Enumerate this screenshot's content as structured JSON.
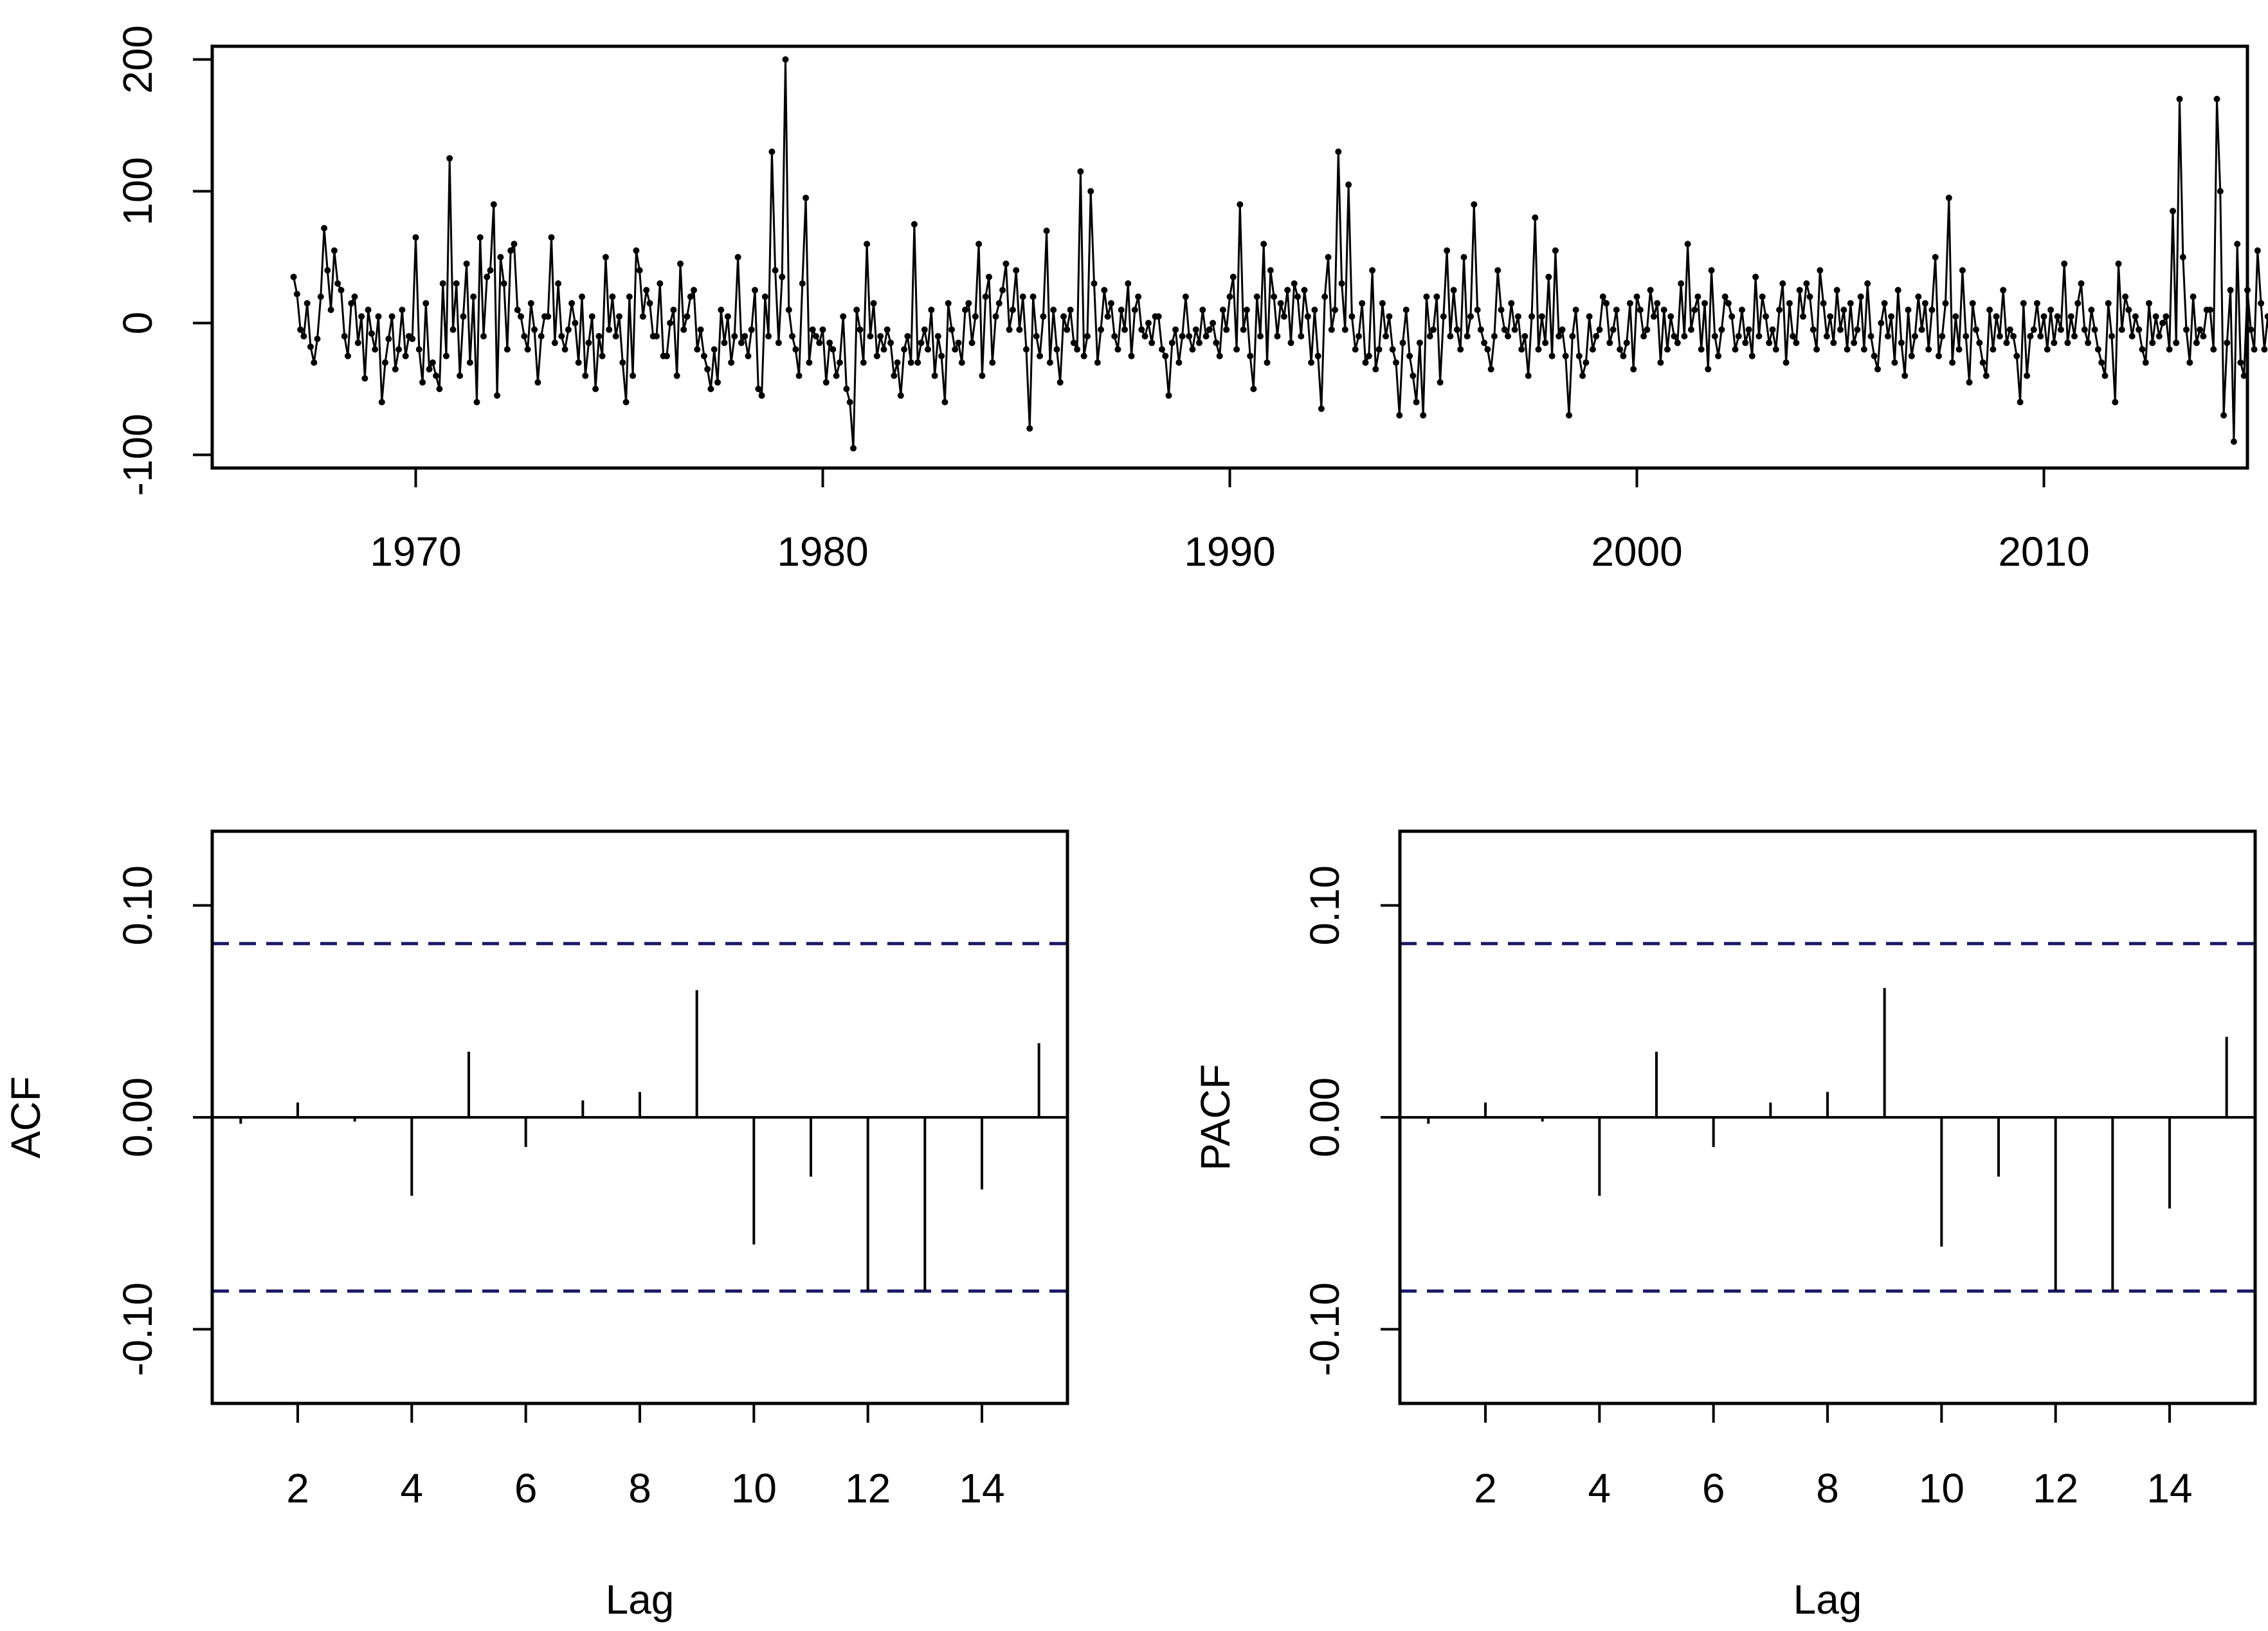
{
  "chart_data": [
    {
      "type": "line",
      "title": "",
      "xlabel": "",
      "ylabel": "",
      "x_start": 1967,
      "x_frequency": "monthly",
      "xlim": [
        1965,
        2015
      ],
      "ylim": [
        -110,
        210
      ],
      "x_ticks": [
        1970,
        1980,
        1990,
        2000,
        2010
      ],
      "x_tick_labels": [
        "1970",
        "1980",
        "1990",
        "2000",
        "2010"
      ],
      "y_ticks": [
        -100,
        0,
        100,
        200
      ],
      "y_tick_labels": [
        "-100",
        "0",
        "100",
        "200"
      ],
      "grid": false,
      "marker": "point",
      "series": [
        {
          "values": [
            35,
            22,
            -5,
            -10,
            15,
            -18,
            -30,
            -12,
            20,
            72,
            40,
            10,
            55,
            30,
            25,
            -10,
            -25,
            15,
            20,
            -15,
            5,
            -42,
            10,
            -8,
            -20,
            5,
            -60,
            -30,
            -12,
            5,
            -35,
            -20,
            10,
            -25,
            -10,
            -12,
            65,
            -20,
            -45,
            15,
            -35,
            -30,
            -40,
            -50,
            30,
            -25,
            125,
            -5,
            30,
            -40,
            5,
            45,
            -30,
            20,
            -60,
            65,
            -10,
            35,
            40,
            90,
            -55,
            50,
            30,
            -20,
            55,
            60,
            10,
            5,
            -10,
            -20,
            15,
            -5,
            -45,
            -10,
            5,
            5,
            65,
            -15,
            30,
            -10,
            -20,
            -5,
            15,
            0,
            -30,
            20,
            -40,
            -15,
            5,
            -50,
            -10,
            -25,
            50,
            -5,
            20,
            -10,
            5,
            -30,
            -60,
            20,
            -40,
            55,
            40,
            5,
            25,
            15,
            -10,
            -10,
            30,
            -25,
            -25,
            0,
            10,
            -40,
            45,
            -5,
            5,
            20,
            25,
            -20,
            -5,
            -25,
            -35,
            -50,
            -20,
            -45,
            10,
            -15,
            5,
            -30,
            -10,
            50,
            -15,
            -10,
            -25,
            -5,
            25,
            -50,
            -55,
            20,
            -10,
            130,
            40,
            -15,
            35,
            200,
            10,
            -10,
            -20,
            -40,
            30,
            95,
            -30,
            -5,
            -10,
            -15,
            -5,
            -45,
            -15,
            -20,
            -40,
            -30,
            5,
            -50,
            -60,
            -95,
            10,
            -5,
            -30,
            60,
            -10,
            15,
            -25,
            -10,
            -20,
            -5,
            -15,
            -40,
            -30,
            -55,
            -20,
            -10,
            -30,
            75,
            -30,
            -15,
            -5,
            -20,
            10,
            -40,
            -10,
            -25,
            -60,
            15,
            -5,
            -20,
            -15,
            -30,
            10,
            15,
            -15,
            5,
            60,
            -40,
            20,
            35,
            -30,
            5,
            15,
            25,
            45,
            -5,
            10,
            40,
            -5,
            20,
            -20,
            -80,
            20,
            -10,
            -25,
            5,
            70,
            -30,
            10,
            -20,
            -45,
            5,
            -5,
            10,
            -15,
            -20,
            115,
            -25,
            -10,
            100,
            30,
            -30,
            -5,
            25,
            5,
            15,
            -10,
            -20,
            10,
            -5,
            30,
            -25,
            10,
            20,
            -5,
            -10,
            0,
            -15,
            5,
            5,
            -20,
            -25,
            -55,
            -15,
            -5,
            -30,
            -10,
            20,
            -10,
            -20,
            -5,
            -15,
            10,
            -10,
            -5,
            0,
            -15,
            -25,
            10,
            -5,
            20,
            35,
            -20,
            90,
            -5,
            10,
            -25,
            -50,
            20,
            -10,
            60,
            -30,
            40,
            20,
            -10,
            15,
            5,
            25,
            -15,
            30,
            20,
            -10,
            25,
            5,
            -30,
            10,
            -25,
            -65,
            20,
            50,
            -5,
            10,
            130,
            30,
            -5,
            105,
            5,
            -20,
            -10,
            15,
            -30,
            -25,
            40,
            -35,
            -20,
            15,
            -10,
            5,
            -20,
            -30,
            -70,
            -15,
            10,
            -25,
            -40,
            -60,
            -15,
            -70,
            20,
            -10,
            -5,
            20,
            -45,
            5,
            55,
            -10,
            25,
            -5,
            -20,
            50,
            -10,
            5,
            90,
            10,
            -5,
            -15,
            -20,
            -35,
            -10,
            40,
            10,
            -5,
            -10,
            15,
            -5,
            5,
            -20,
            -10,
            -40,
            5,
            80,
            -20,
            5,
            -15,
            35,
            -25,
            55,
            -10,
            -5,
            -25,
            -70,
            -10,
            10,
            -25,
            -40,
            -30,
            5,
            -20,
            -10,
            -5,
            20,
            15,
            -15,
            -5,
            10,
            -20,
            -25,
            -15,
            15,
            -35,
            20,
            10,
            -10,
            -5,
            25,
            5,
            15,
            -30,
            10,
            -20,
            5,
            -10,
            -15,
            30,
            -10,
            60,
            -5,
            10,
            20,
            -20,
            15,
            -35,
            40,
            -10,
            -25,
            -5,
            20,
            15,
            5,
            -20,
            -10,
            10,
            -15,
            -5,
            -25,
            35,
            -10,
            20,
            5,
            -15,
            -5,
            -20,
            10,
            30,
            -30,
            15,
            -10,
            -15,
            25,
            5,
            30,
            20,
            -5,
            -20,
            40,
            15,
            -10,
            5,
            -15,
            25,
            -5,
            10,
            -20,
            15,
            -15,
            -5,
            20,
            -20,
            30,
            -10,
            -25,
            -35,
            0,
            15,
            -10,
            5,
            -30,
            25,
            -15,
            -40,
            10,
            -25,
            -10,
            20,
            -5,
            15,
            -20,
            10,
            50,
            -25,
            -10,
            15,
            95,
            -30,
            5,
            -20,
            40,
            -10,
            -45,
            15,
            -5,
            -15,
            -30,
            -40,
            10,
            -20,
            5,
            -10,
            25,
            -15,
            -5,
            -10,
            -25,
            -60,
            15,
            -40,
            -10,
            -5,
            15,
            -10,
            5,
            -20,
            10,
            -15,
            5,
            -5,
            45,
            -15,
            5,
            -10,
            15,
            30,
            -5,
            -15,
            10,
            -5,
            -20,
            -30,
            -40,
            15,
            -10,
            -60,
            45,
            -5,
            20,
            10,
            -10,
            5,
            -5,
            -20,
            -30,
            15,
            -15,
            5,
            -10,
            0,
            5,
            -20,
            85,
            -15,
            170,
            50,
            -5,
            -30,
            20,
            -15,
            -5,
            -10,
            10,
            10,
            -20,
            170,
            100,
            -70,
            -15,
            25,
            -90,
            60,
            -30,
            -40,
            25,
            -5,
            -20,
            55,
            15,
            -20,
            5,
            -25,
            -60,
            -95,
            -40,
            -5,
            30,
            -20,
            -10,
            20,
            25,
            -5,
            -30,
            -20,
            -10,
            20,
            -15,
            10,
            -10,
            -5,
            40,
            15,
            -20,
            -15,
            -75,
            30,
            60,
            -35,
            -5,
            15,
            -20,
            5,
            -40,
            -70,
            10,
            -20,
            -5,
            -25,
            40,
            5,
            -10,
            20,
            -15,
            35,
            -10,
            -25,
            5,
            30,
            -5,
            10,
            40,
            -20,
            -30,
            15,
            -45,
            -10,
            25,
            -70,
            -5,
            10,
            -25,
            -40,
            15,
            -55,
            20,
            65,
            -15,
            -10,
            25,
            5,
            -30,
            10,
            15,
            -20,
            55,
            -15,
            -5,
            -60,
            20,
            35,
            -25,
            5,
            -10,
            10,
            -20,
            -35,
            5,
            15,
            -45,
            0,
            20,
            -10,
            15,
            -5,
            -30,
            -60,
            5,
            160,
            -40,
            10,
            -5,
            -20,
            20,
            -35,
            -15,
            40,
            10,
            -5,
            -15,
            45,
            -10,
            30,
            20,
            95,
            -10,
            -5,
            15,
            10,
            -20,
            -30,
            20,
            -15,
            40,
            5,
            -10,
            -25,
            15,
            -35,
            10,
            -5,
            20,
            -15,
            -45,
            5,
            50,
            -10,
            -75,
            30,
            -20,
            -5,
            15,
            -40,
            -10,
            50,
            -30,
            -15,
            20,
            5,
            -25,
            -50,
            -10,
            25,
            -20,
            -5,
            50,
            -100,
            10,
            -35,
            5,
            -15,
            15,
            -10,
            -5,
            25,
            -40,
            -20,
            5,
            10,
            35,
            -15,
            -45,
            20,
            95,
            -10,
            -60,
            15,
            -20,
            10,
            5,
            -15,
            30,
            -5,
            -25,
            10,
            20,
            -10,
            -35,
            15,
            -20,
            45,
            -5,
            20,
            -30,
            10,
            95,
            -15,
            -5,
            -25,
            15,
            -50,
            20,
            -20,
            -40,
            10,
            -10,
            5,
            -45,
            15,
            -15,
            35,
            -5,
            -20,
            10,
            -25,
            5,
            15,
            -10,
            -40,
            25,
            -5,
            -20,
            10,
            -30,
            5,
            15,
            -15,
            60,
            20,
            -10,
            -30,
            5,
            25,
            10,
            -20,
            -5,
            15,
            -15,
            -30,
            10,
            -10,
            50,
            -25,
            -95,
            -5,
            15,
            -20,
            10,
            -10,
            -35,
            55,
            -15,
            -20,
            5,
            -10,
            25,
            -5,
            -60,
            20,
            10,
            -15,
            5,
            -25,
            30,
            15,
            -20,
            80,
            -10,
            5,
            -30,
            65,
            -15,
            40,
            -10,
            -25,
            15,
            -5,
            -50,
            20,
            -20,
            10,
            -15,
            -35,
            5,
            -10,
            -15,
            15,
            -20,
            20,
            -5,
            -30,
            45,
            -15,
            10,
            -10,
            -20,
            -25,
            25,
            -5,
            15,
            -10,
            5,
            -15,
            -30,
            20,
            35,
            -5,
            -20,
            -10,
            10,
            40,
            -15,
            -5,
            20,
            -25,
            5,
            -10,
            85,
            10,
            30,
            -30,
            60,
            75,
            -15,
            -5,
            50,
            20,
            60,
            -20,
            -35,
            10,
            -25,
            5,
            -15,
            20,
            -20,
            -10,
            -5,
            25,
            -15,
            -75,
            -10,
            35,
            -20,
            -5,
            15,
            -40,
            10,
            -30,
            40,
            -20,
            -10,
            -5,
            15,
            5,
            -10,
            10,
            -5,
            5,
            0,
            -5,
            -10,
            5,
            -20,
            -85,
            -15,
            -5,
            -20,
            -10,
            -25
          ]
        }
      ]
    },
    {
      "type": "bar",
      "style": "stem",
      "title": "",
      "xlabel": "Lag",
      "ylabel": "ACF",
      "xlim": [
        0.5,
        15.5
      ],
      "ylim": [
        -0.135,
        0.135
      ],
      "x_ticks": [
        2,
        4,
        6,
        8,
        10,
        12,
        14
      ],
      "x_tick_labels": [
        "2",
        "4",
        "6",
        "8",
        "10",
        "12",
        "14"
      ],
      "y_ticks": [
        -0.1,
        0,
        0.1
      ],
      "y_tick_labels": [
        "-0.10",
        "0.00",
        "0.10"
      ],
      "confidence_bounds": [
        -0.082,
        0.082
      ],
      "bound_color": "#1a1a66",
      "categories": [
        1,
        2,
        3,
        4,
        5,
        6,
        7,
        8,
        9,
        10,
        11,
        12,
        13,
        14,
        15
      ],
      "values": [
        -0.003,
        0.007,
        -0.002,
        -0.037,
        0.031,
        -0.014,
        0.008,
        0.012,
        0.06,
        -0.06,
        -0.028,
        -0.082,
        -0.082,
        -0.034,
        0.035
      ]
    },
    {
      "type": "bar",
      "style": "stem",
      "title": "",
      "xlabel": "Lag",
      "ylabel": "PACF",
      "xlim": [
        0.5,
        15.5
      ],
      "ylim": [
        -0.135,
        0.135
      ],
      "x_ticks": [
        2,
        4,
        6,
        8,
        10,
        12,
        14
      ],
      "x_tick_labels": [
        "2",
        "4",
        "6",
        "8",
        "10",
        "12",
        "14"
      ],
      "y_ticks": [
        -0.1,
        0,
        0.1
      ],
      "y_tick_labels": [
        "-0.10",
        "0.00",
        "0.10"
      ],
      "confidence_bounds": [
        -0.082,
        0.082
      ],
      "bound_color": "#1a1a66",
      "categories": [
        1,
        2,
        3,
        4,
        5,
        6,
        7,
        8,
        9,
        10,
        11,
        12,
        13,
        14,
        15
      ],
      "values": [
        -0.003,
        0.007,
        -0.002,
        -0.037,
        0.031,
        -0.014,
        0.007,
        0.012,
        0.061,
        -0.061,
        -0.028,
        -0.082,
        -0.082,
        -0.043,
        0.038
      ]
    }
  ]
}
